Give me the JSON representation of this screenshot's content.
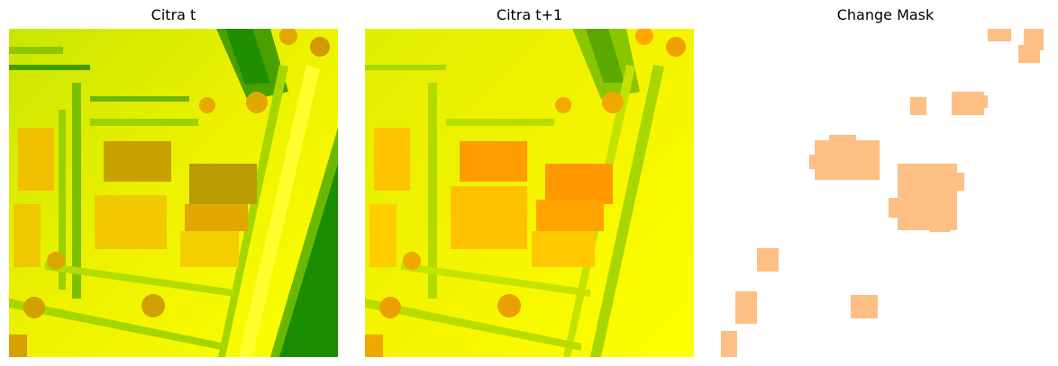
{
  "panels": [
    {
      "title": "Citra t"
    },
    {
      "title": "Citra t+1"
    },
    {
      "title": "Change Mask"
    }
  ],
  "colors": {
    "background": "#ffffff",
    "yellow": "#ffff00",
    "lime": "#ccee00",
    "green": "#1a8c00",
    "orange": "#ff9900",
    "mask_fill": "#fdbf84"
  }
}
